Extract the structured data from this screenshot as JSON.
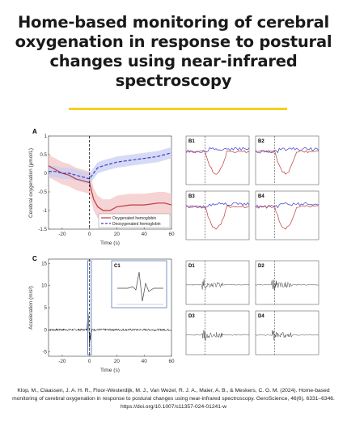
{
  "title_lines": [
    "Home-based monitoring of cerebral",
    "oxygenation in response to postural",
    "changes using near-infrared",
    "spectroscopy"
  ],
  "colors": {
    "accent_rule": "#f2d21b",
    "oxy": "#c0393b",
    "deoxy": "#3b3fc9",
    "oxy_band": "#f3c4c6",
    "deoxy_band": "#c9cdf2",
    "trace": "#111111",
    "inset_border": "#5577c4"
  },
  "figure": {
    "panel_a": {
      "letter": "A",
      "ylabel": "Cerebral oxygenation (μmol/L)",
      "xlabel": "Time (s)",
      "legend": [
        "Oxygenated hemoglobin",
        "Deoxygenated hemoglobin"
      ]
    },
    "panel_c": {
      "letter": "C",
      "ylabel": "Acceleration (m/s²)",
      "xlabel": "Time (s)",
      "inset_letter": "C1"
    },
    "small_panels": [
      "B1",
      "B2",
      "B3",
      "B4",
      "D1",
      "D2",
      "D3",
      "D4"
    ]
  },
  "chart_data": [
    {
      "type": "line",
      "panel": "A",
      "xlabel": "Time (s)",
      "ylabel": "Cerebral oxygenation (μmol/L)",
      "xlim": [
        -30,
        60
      ],
      "ylim": [
        -1.5,
        1
      ],
      "x_ticks": [
        -20,
        0,
        20,
        40,
        60
      ],
      "y_ticks": [
        1,
        0.5,
        0,
        -0.5,
        -1,
        -1.5
      ],
      "x": [
        -30,
        -25,
        -20,
        -15,
        -10,
        -5,
        0,
        3,
        6,
        10,
        15,
        20,
        30,
        40,
        50,
        55,
        60
      ],
      "series": [
        {
          "name": "Oxygenated hemoglobin",
          "values": [
            0.2,
            0.1,
            0.0,
            -0.05,
            -0.15,
            -0.2,
            -0.25,
            -0.7,
            -0.9,
            -1.0,
            -1.0,
            -0.9,
            -0.85,
            -0.85,
            -0.8,
            -0.8,
            -0.85
          ],
          "band": 0.3
        },
        {
          "name": "Deoxygenated hemoglobin",
          "values": [
            0.05,
            0.05,
            0.0,
            0.0,
            -0.05,
            -0.1,
            -0.15,
            0.0,
            0.15,
            0.2,
            0.25,
            0.3,
            0.35,
            0.4,
            0.45,
            0.5,
            0.55
          ],
          "band": 0.15
        }
      ],
      "legend_position": "bottom-right",
      "event_line_x": 0
    },
    {
      "type": "line",
      "panel": "C",
      "xlabel": "Time (s)",
      "ylabel": "Acceleration (m/s²)",
      "xlim": [
        -30,
        60
      ],
      "ylim": [
        -6,
        16
      ],
      "x_ticks": [
        -20,
        0,
        20,
        40,
        60
      ],
      "y_ticks": [
        15,
        10,
        5,
        0,
        -5
      ],
      "event_line_x": 0
    }
  ],
  "citation": [
    "Klop, M., Claassen, J. A. H. R., Floor-Westerdijk, M. J., Van Wezel, R. J. A., Maier, A. B., & Meskers, C. G. M. (2024). Home-based",
    "monitoring of cerebral oxygenation in response to postural changes using near-infrared spectroscopy. GeroScience, 46(6), 6331–6346.",
    "https://doi.org/10.1007/s11357-024-01241-w"
  ]
}
